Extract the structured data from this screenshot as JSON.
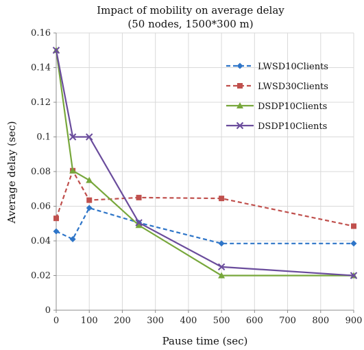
{
  "chart_data": {
    "type": "line",
    "title": "Impact of mobility on average delay",
    "subtitle": "(50 nodes, 1500*300 m)",
    "xlabel": "Pause time (sec)",
    "ylabel": "Average delay (sec)",
    "xlim": [
      0,
      900
    ],
    "ylim": [
      0,
      0.16
    ],
    "xticks": [
      "0",
      "100",
      "200",
      "300",
      "400",
      "500",
      "600",
      "700",
      "800",
      "900"
    ],
    "yticks": [
      "0",
      "0.02",
      "0.04",
      "0.06",
      "0.08",
      "0.1",
      "0.12",
      "0.14",
      "0.16"
    ],
    "grid": true,
    "legend_position": "right",
    "series": [
      {
        "name": "LWSD10Clients",
        "color": "#2e75c8",
        "dash": "dashed",
        "marker": "diamond",
        "x": [
          0,
          50,
          100,
          250,
          500,
          900
        ],
        "y": [
          0.0455,
          0.041,
          0.059,
          0.0505,
          0.0385,
          0.0385
        ]
      },
      {
        "name": "LWSD30Clients",
        "color": "#c0504d",
        "dash": "dashed",
        "marker": "square",
        "x": [
          0,
          50,
          100,
          250,
          500,
          900
        ],
        "y": [
          0.053,
          0.0805,
          0.0635,
          0.065,
          0.0645,
          0.0485
        ]
      },
      {
        "name": "DSDP10Clients",
        "color": "#77a73b",
        "dash": "solid",
        "marker": "triangle",
        "x": [
          0,
          50,
          100,
          250,
          500,
          900
        ],
        "y": [
          0.15,
          0.0805,
          0.075,
          0.049,
          0.02,
          0.02
        ]
      },
      {
        "name": "DSDP10Clients",
        "color": "#6a4c9c",
        "dash": "solid",
        "marker": "x",
        "x": [
          0,
          50,
          100,
          250,
          500,
          900
        ],
        "y": [
          0.15,
          0.1,
          0.1,
          0.0505,
          0.025,
          0.02
        ]
      }
    ]
  }
}
